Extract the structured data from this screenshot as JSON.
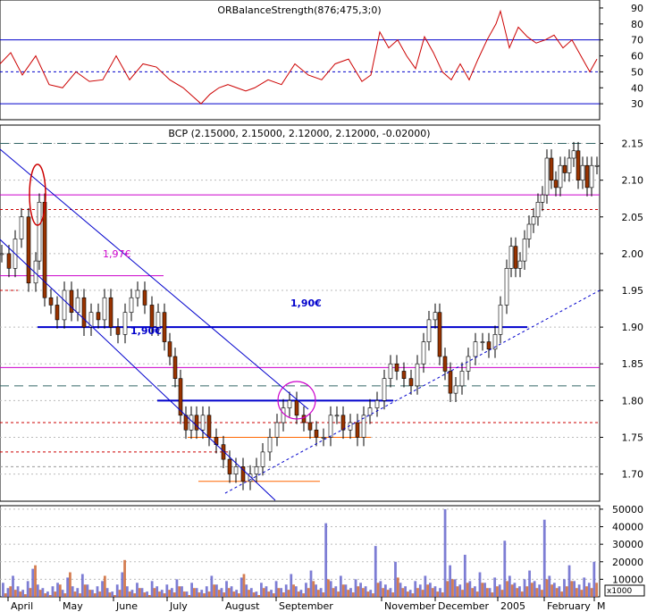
{
  "chart_data": [
    {
      "type": "line",
      "title": "ORBalanceStrength(876;475,3;0)",
      "ylim": [
        20,
        95
      ],
      "yticks": [
        30,
        40,
        50,
        60,
        70,
        80,
        90
      ],
      "hlines": [
        {
          "value": 70,
          "style": "solid",
          "color": "#0000cc"
        },
        {
          "value": 50,
          "style": "dotted",
          "color": "#0000cc"
        },
        {
          "value": 30,
          "style": "solid",
          "color": "#0000cc"
        }
      ],
      "series": [
        {
          "color": "#cc0000",
          "x": [
            0,
            12,
            25,
            40,
            55,
            70,
            85,
            100,
            115,
            130,
            145,
            160,
            175,
            190,
            205,
            215,
            225,
            235,
            245,
            255,
            265,
            275,
            285,
            300,
            315,
            330,
            345,
            360,
            375,
            390,
            405,
            415,
            425,
            435,
            445,
            455,
            465,
            475,
            485,
            495,
            505,
            515,
            525,
            535,
            545,
            555,
            560,
            570,
            580,
            590,
            600,
            610,
            620,
            630,
            640,
            650,
            660,
            668
          ],
          "y": [
            55,
            62,
            48,
            60,
            42,
            40,
            50,
            44,
            45,
            60,
            45,
            55,
            53,
            45,
            40,
            35,
            30,
            36,
            40,
            42,
            40,
            38,
            40,
            45,
            42,
            55,
            48,
            45,
            55,
            58,
            44,
            48,
            75,
            65,
            70,
            60,
            52,
            72,
            62,
            50,
            45,
            55,
            45,
            58,
            70,
            80,
            88,
            65,
            78,
            72,
            68,
            70,
            73,
            65,
            70,
            60,
            50,
            58
          ]
        }
      ]
    },
    {
      "type": "candlestick",
      "title": "BCP (2.15000, 2.15000, 2.12000, 2.12000, -0.02000)",
      "ylim": [
        1.663,
        2.175
      ],
      "yticks": [
        1.7,
        1.75,
        1.8,
        1.85,
        1.9,
        1.95,
        2.0,
        2.05,
        2.1,
        2.15
      ],
      "xticks": [
        "April",
        "May",
        "June",
        "July",
        "August",
        "September",
        "November",
        "December",
        "2005",
        "February",
        "M"
      ],
      "annotations": [
        "1,97€",
        "1,90€",
        "1,90€"
      ],
      "hlines": [
        {
          "value": 2.15,
          "style": "dashed",
          "color": "#336666"
        },
        {
          "value": 2.08,
          "style": "solid",
          "color": "#cc00cc"
        },
        {
          "value": 2.06,
          "style": "dotted",
          "color": "#cc0000"
        },
        {
          "value": 1.97,
          "style": "solid",
          "color": "#cc00cc",
          "x_end": 183
        },
        {
          "value": 1.95,
          "style": "dotted",
          "color": "#cc0000",
          "x_end": 20
        },
        {
          "value": 1.9,
          "style": "solid",
          "color": "#0000cc",
          "x_start": 42,
          "x_end": 590
        },
        {
          "value": 1.845,
          "style": "solid",
          "color": "#cc00cc"
        },
        {
          "value": 1.82,
          "style": "dashed",
          "color": "#336666"
        },
        {
          "value": 1.8,
          "style": "solid",
          "color": "#0000cc",
          "x_start": 176,
          "x_end": 440
        },
        {
          "value": 1.77,
          "style": "dotted",
          "color": "#cc0000"
        },
        {
          "value": 1.75,
          "style": "solid",
          "color": "#ff6600",
          "x_start": 210,
          "x_end": 415
        },
        {
          "value": 1.73,
          "style": "dotted",
          "color": "#cc0000",
          "x_end": 255
        },
        {
          "value": 1.71,
          "style": "dotted",
          "color": "#999999"
        },
        {
          "value": 1.69,
          "style": "solid",
          "color": "#ff6600",
          "x_start": 222,
          "x_end": 358
        }
      ],
      "closes": {
        "x": [
          0,
          8,
          15,
          22,
          30,
          38,
          42,
          48,
          55,
          62,
          70,
          78,
          85,
          92,
          100,
          108,
          115,
          122,
          130,
          138,
          145,
          152,
          160,
          168,
          175,
          182,
          188,
          194,
          200,
          206,
          212,
          218,
          225,
          232,
          240,
          248,
          255,
          262,
          270,
          278,
          285,
          292,
          300,
          308,
          315,
          322,
          330,
          338,
          345,
          352,
          360,
          368,
          375,
          382,
          390,
          398,
          405,
          412,
          420,
          428,
          435,
          442,
          450,
          458,
          465,
          472,
          478,
          485,
          490,
          496,
          502,
          508,
          515,
          522,
          530,
          538,
          545,
          552,
          558,
          565,
          570,
          575,
          580,
          585,
          590,
          595,
          600,
          605,
          610,
          615,
          620,
          625,
          630,
          635,
          640,
          645,
          650,
          655,
          660,
          666
        ],
        "y": [
          2.0,
          1.98,
          2.02,
          2.05,
          1.96,
          1.99,
          2.07,
          1.94,
          1.93,
          1.91,
          1.95,
          1.92,
          1.94,
          1.9,
          1.92,
          1.91,
          1.94,
          1.9,
          1.89,
          1.92,
          1.94,
          1.95,
          1.93,
          1.9,
          1.92,
          1.88,
          1.86,
          1.83,
          1.78,
          1.76,
          1.78,
          1.76,
          1.78,
          1.75,
          1.74,
          1.72,
          1.7,
          1.71,
          1.69,
          1.7,
          1.71,
          1.73,
          1.75,
          1.77,
          1.79,
          1.8,
          1.78,
          1.77,
          1.76,
          1.75,
          1.75,
          1.78,
          1.78,
          1.76,
          1.77,
          1.75,
          1.78,
          1.79,
          1.8,
          1.83,
          1.85,
          1.84,
          1.83,
          1.82,
          1.85,
          1.88,
          1.91,
          1.92,
          1.86,
          1.84,
          1.81,
          1.82,
          1.84,
          1.86,
          1.88,
          1.88,
          1.87,
          1.89,
          1.93,
          1.98,
          2.01,
          1.98,
          1.99,
          2.02,
          2.04,
          2.05,
          2.07,
          2.08,
          2.13,
          2.1,
          2.09,
          2.12,
          2.11,
          2.13,
          2.14,
          2.1,
          2.12,
          2.09,
          2.12,
          2.12
        ]
      }
    },
    {
      "type": "bar",
      "title": "",
      "ylabel": "x1000",
      "ylim": [
        0,
        52000
      ],
      "yticks": [
        10000,
        20000,
        30000,
        40000,
        50000
      ],
      "ytick_labels": [
        "10000",
        "20000",
        "30000",
        "40000",
        "50000"
      ],
      "series": [
        {
          "color": "#6666cc",
          "values": [
            8000,
            5000,
            12000,
            6000,
            4000,
            9000,
            16000,
            7000,
            5000,
            3000,
            6000,
            8000,
            4000,
            11000,
            6000,
            5000,
            13000,
            7000,
            4000,
            6000,
            9000,
            5000,
            3000,
            7000,
            14000,
            6000,
            4000,
            8000,
            5000,
            3000,
            9000,
            6000,
            4000,
            7000,
            5000,
            10000,
            6000,
            3000,
            8000,
            5000,
            4000,
            6000,
            12000,
            7000,
            5000,
            9000,
            6000,
            4000,
            11000,
            7000,
            5000,
            3000,
            8000,
            6000,
            4000,
            9000,
            5000,
            7000,
            13000,
            6000,
            4000,
            8000,
            15000,
            7000,
            5000,
            42000,
            9000,
            6000,
            12000,
            7000,
            5000,
            10000,
            8000,
            6000,
            4000,
            29000,
            9000,
            7000,
            5000,
            20000,
            8000,
            6000,
            4000,
            9000,
            7000,
            12000,
            8000,
            6000,
            5000,
            50000,
            18000,
            10000,
            7000,
            24000,
            9000,
            6000,
            14000,
            8000,
            5000,
            11000,
            7000,
            32000,
            12000,
            8000,
            6000,
            10000,
            15000,
            9000,
            7000,
            44000,
            12000,
            8000,
            6000,
            10000,
            18000,
            9000,
            7000,
            11000,
            8000,
            20000
          ]
        },
        {
          "color": "#cc6633",
          "values": [
            2000,
            6000,
            4000,
            3000,
            1500,
            5000,
            18000,
            4000,
            2000,
            1000,
            3000,
            7000,
            2000,
            14000,
            3000,
            2000,
            7000,
            4000,
            2000,
            3000,
            12000,
            2500,
            1000,
            4000,
            21000,
            3000,
            2000,
            5000,
            2500,
            1000,
            5000,
            3000,
            2000,
            4000,
            2500,
            6000,
            3000,
            1000,
            5000,
            2500,
            2000,
            3000,
            7000,
            4000,
            2500,
            5000,
            3000,
            2000,
            13000,
            4000,
            2500,
            1000,
            5000,
            3000,
            2000,
            5000,
            2500,
            4000,
            7000,
            3000,
            2000,
            5000,
            9000,
            4000,
            2500,
            10000,
            5000,
            3000,
            7000,
            4000,
            2500,
            6000,
            5000,
            3000,
            2000,
            8000,
            5000,
            4000,
            2500,
            11000,
            5000,
            3000,
            2000,
            5000,
            4000,
            7000,
            5000,
            3000,
            2500,
            9000,
            10000,
            6000,
            4000,
            8000,
            5000,
            3000,
            8000,
            5000,
            2500,
            6000,
            4000,
            9000,
            7000,
            5000,
            3000,
            6000,
            8000,
            5000,
            4000,
            10000,
            7000,
            5000,
            3000,
            6000,
            9000,
            5000,
            4000,
            6000,
            5000,
            8000
          ]
        }
      ]
    }
  ]
}
